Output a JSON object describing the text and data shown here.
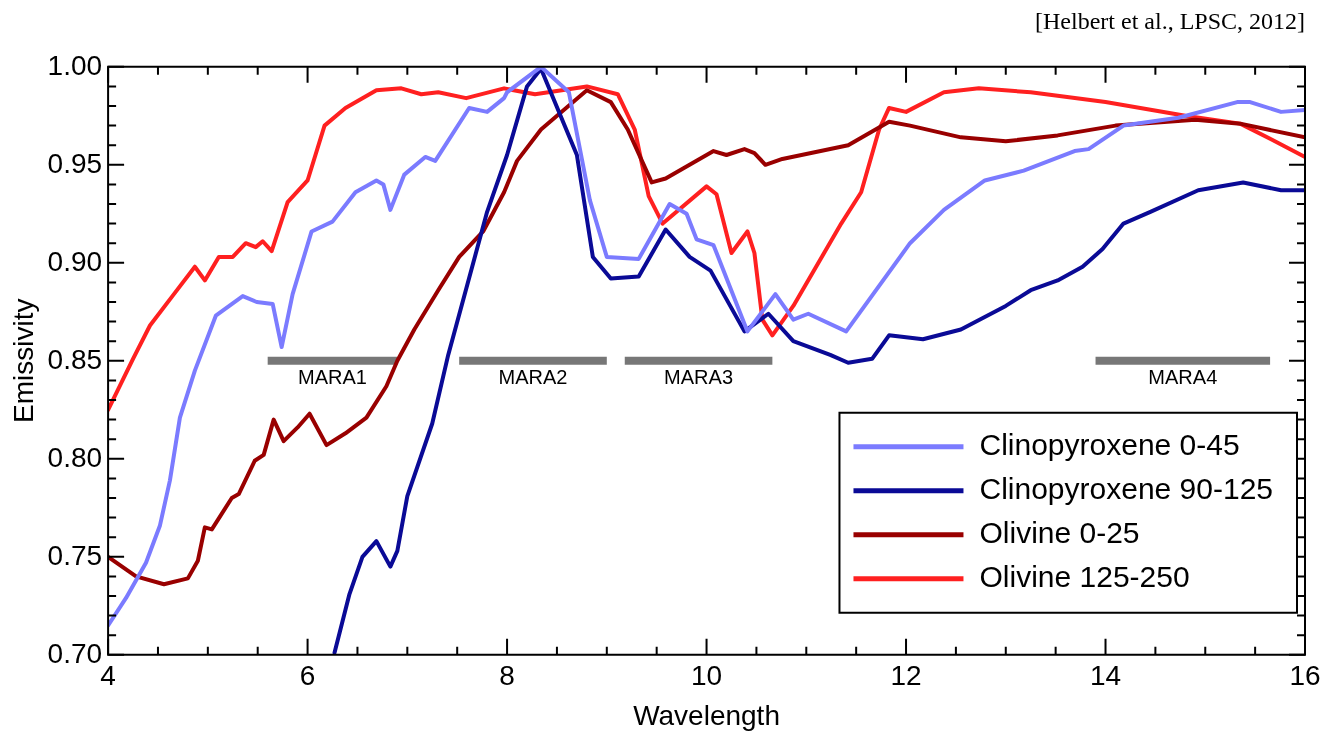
{
  "chart_data": {
    "type": "line",
    "xlabel": "Wavelength",
    "ylabel": "Emissivity",
    "annotations": [
      "[Helbert et al., LPSC, 2012]"
    ],
    "xlim": [
      4,
      16
    ],
    "ylim": [
      0.7,
      1.0
    ],
    "xticks": [
      4,
      {
        "value": 4.5,
        "label": null
      },
      6,
      {
        "value": 5,
        "label": null
      },
      {
        "value": 5.5,
        "label": null
      },
      {
        "value": 6.5,
        "label": null
      },
      {
        "value": 7,
        "label": null
      },
      {
        "value": 7.5,
        "label": null
      },
      8,
      {
        "value": 8.5,
        "label": null
      },
      {
        "value": 9,
        "label": null
      },
      {
        "value": 9.5,
        "label": null
      },
      10,
      {
        "value": 10.5,
        "label": null
      },
      {
        "value": 11,
        "label": null
      },
      {
        "value": 11.5,
        "label": null
      },
      12,
      {
        "value": 12.5,
        "label": null
      },
      {
        "value": 13,
        "label": null
      },
      {
        "value": 13.5,
        "label": null
      },
      14,
      {
        "value": 14.5,
        "label": null
      },
      {
        "value": 15,
        "label": null
      },
      {
        "value": 15.5,
        "label": null
      },
      16
    ],
    "yticks": [
      {
        "value": 0.7,
        "label": "0.70"
      },
      {
        "value": 0.71,
        "label": null
      },
      {
        "value": 0.72,
        "label": null
      },
      {
        "value": 0.73,
        "label": null
      },
      {
        "value": 0.74,
        "label": null
      },
      0.75,
      {
        "value": 0.76,
        "label": null
      },
      {
        "value": 0.77,
        "label": null
      },
      {
        "value": 0.78,
        "label": null
      },
      {
        "value": 0.79,
        "label": null
      },
      {
        "value": 0.8,
        "label": "0.80"
      },
      {
        "value": 0.81,
        "label": null
      },
      {
        "value": 0.82,
        "label": null
      },
      {
        "value": 0.83,
        "label": null
      },
      {
        "value": 0.84,
        "label": null
      },
      0.85,
      {
        "value": 0.86,
        "label": null
      },
      {
        "value": 0.87,
        "label": null
      },
      {
        "value": 0.88,
        "label": null
      },
      {
        "value": 0.89,
        "label": null
      },
      {
        "value": 0.9,
        "label": "0.90"
      },
      {
        "value": 0.91,
        "label": null
      },
      {
        "value": 0.92,
        "label": null
      },
      {
        "value": 0.93,
        "label": null
      },
      {
        "value": 0.94,
        "label": null
      },
      0.95,
      {
        "value": 0.96,
        "label": null
      },
      {
        "value": 0.97,
        "label": null
      },
      {
        "value": 0.98,
        "label": null
      },
      {
        "value": 0.99,
        "label": null
      },
      {
        "value": 1.0,
        "label": "1.00"
      }
    ],
    "legend": "bottom right",
    "series": [
      {
        "name": "Clinopyroxene 0-45",
        "color": "#7b7bff",
        "x": [
          4.0,
          4.18,
          4.38,
          4.52,
          4.62,
          4.72,
          4.87,
          5.08,
          5.35,
          5.49,
          5.65,
          5.74,
          5.85,
          6.04,
          6.25,
          6.48,
          6.69,
          6.76,
          6.83,
          6.97,
          7.18,
          7.28,
          7.62,
          7.8,
          7.97,
          8.0,
          8.34,
          8.62,
          8.83,
          9.0,
          9.32,
          9.63,
          9.8,
          9.9,
          10.07,
          10.41,
          10.69,
          10.87,
          11.02,
          11.4,
          12.04,
          12.38,
          12.79,
          13.18,
          13.69,
          13.83,
          14.18,
          14.73,
          15.32,
          15.45,
          15.76,
          16.0
        ],
        "values": [
          0.715,
          0.729,
          0.747,
          0.766,
          0.789,
          0.821,
          0.845,
          0.873,
          0.883,
          0.88,
          0.879,
          0.857,
          0.884,
          0.916,
          0.921,
          0.936,
          0.942,
          0.94,
          0.927,
          0.945,
          0.954,
          0.952,
          0.979,
          0.977,
          0.984,
          0.987,
          1.0,
          0.987,
          0.932,
          0.903,
          0.902,
          0.93,
          0.925,
          0.912,
          0.909,
          0.865,
          0.884,
          0.871,
          0.874,
          0.865,
          0.91,
          0.927,
          0.942,
          0.947,
          0.957,
          0.958,
          0.97,
          0.974,
          0.982,
          0.982,
          0.977,
          0.978
        ]
      },
      {
        "name": "Clinopyroxene 90-125",
        "color": "#0a0a96",
        "x": [
          6.27,
          6.42,
          6.55,
          6.69,
          6.83,
          6.9,
          7.0,
          7.25,
          7.41,
          7.8,
          8.0,
          8.2,
          8.34,
          8.7,
          8.86,
          9.04,
          9.32,
          9.59,
          9.83,
          10.04,
          10.38,
          10.62,
          10.87,
          11.24,
          11.42,
          11.66,
          11.83,
          12.17,
          12.55,
          13.0,
          13.25,
          13.52,
          13.77,
          13.97,
          14.18,
          14.45,
          14.93,
          15.38,
          15.76,
          16.0
        ],
        "values": [
          0.701,
          0.731,
          0.75,
          0.758,
          0.745,
          0.753,
          0.781,
          0.818,
          0.853,
          0.926,
          0.955,
          0.99,
          0.999,
          0.955,
          0.903,
          0.892,
          0.893,
          0.917,
          0.903,
          0.896,
          0.865,
          0.874,
          0.86,
          0.853,
          0.849,
          0.851,
          0.863,
          0.861,
          0.866,
          0.878,
          0.886,
          0.891,
          0.898,
          0.907,
          0.92,
          0.926,
          0.937,
          0.941,
          0.937,
          0.937
        ]
      },
      {
        "name": "Olivine 0-25",
        "color": "#990000",
        "x": [
          4.0,
          4.28,
          4.56,
          4.8,
          4.9,
          4.97,
          5.04,
          5.24,
          5.31,
          5.47,
          5.56,
          5.66,
          5.76,
          5.9,
          6.02,
          6.19,
          6.38,
          6.59,
          6.79,
          6.9,
          7.07,
          7.31,
          7.52,
          7.76,
          7.97,
          8.1,
          8.34,
          8.8,
          9.04,
          9.21,
          9.45,
          9.59,
          10.07,
          10.2,
          10.38,
          10.48,
          10.59,
          10.76,
          11.42,
          11.59,
          11.83,
          12.04,
          12.55,
          13.0,
          13.52,
          14.1,
          14.9,
          15.35,
          16.0
        ],
        "values": [
          0.75,
          0.74,
          0.736,
          0.739,
          0.748,
          0.765,
          0.764,
          0.78,
          0.782,
          0.799,
          0.802,
          0.82,
          0.809,
          0.816,
          0.823,
          0.807,
          0.813,
          0.821,
          0.837,
          0.85,
          0.866,
          0.886,
          0.903,
          0.916,
          0.936,
          0.952,
          0.968,
          0.988,
          0.982,
          0.968,
          0.941,
          0.943,
          0.957,
          0.955,
          0.958,
          0.956,
          0.95,
          0.953,
          0.96,
          0.965,
          0.972,
          0.97,
          0.964,
          0.962,
          0.965,
          0.97,
          0.973,
          0.971,
          0.964
        ]
      },
      {
        "name": "Olivine 125-250",
        "color": "#ff2020",
        "x": [
          4.0,
          4.25,
          4.42,
          4.66,
          4.87,
          4.97,
          5.11,
          5.25,
          5.38,
          5.48,
          5.55,
          5.64,
          5.8,
          6.0,
          6.17,
          6.38,
          6.69,
          6.94,
          7.14,
          7.31,
          7.59,
          7.97,
          8.28,
          8.8,
          9.11,
          9.28,
          9.42,
          9.56,
          10.0,
          10.1,
          10.25,
          10.41,
          10.48,
          10.56,
          10.66,
          10.87,
          11.35,
          11.55,
          11.73,
          11.83,
          12.0,
          12.38,
          12.73,
          13.25,
          14.0,
          14.8,
          15.35,
          15.66,
          16.0
        ],
        "values": [
          0.825,
          0.851,
          0.868,
          0.884,
          0.898,
          0.891,
          0.903,
          0.903,
          0.91,
          0.908,
          0.911,
          0.906,
          0.931,
          0.942,
          0.97,
          0.979,
          0.988,
          0.989,
          0.986,
          0.987,
          0.984,
          0.989,
          0.986,
          0.99,
          0.986,
          0.968,
          0.934,
          0.92,
          0.939,
          0.935,
          0.905,
          0.916,
          0.905,
          0.871,
          0.863,
          0.878,
          0.92,
          0.936,
          0.968,
          0.979,
          0.977,
          0.987,
          0.989,
          0.987,
          0.982,
          0.975,
          0.971,
          0.963,
          0.954
        ]
      },
      {
        "name": "MARA1",
        "type": "line",
        "color": "#777777",
        "x": [
          5.6,
          6.9
        ],
        "values": [
          0.85,
          0.85
        ]
      },
      {
        "name": "MARA2",
        "type": "line",
        "color": "#777777",
        "x": [
          7.52,
          9.0
        ],
        "values": [
          0.85,
          0.85
        ]
      },
      {
        "name": "MARA3",
        "type": "line",
        "color": "#777777",
        "x": [
          9.18,
          10.66
        ],
        "values": [
          0.85,
          0.85
        ]
      },
      {
        "name": "MARA4",
        "type": "line",
        "color": "#777777",
        "x": [
          13.9,
          15.65
        ],
        "values": [
          0.85,
          0.85
        ]
      }
    ]
  }
}
